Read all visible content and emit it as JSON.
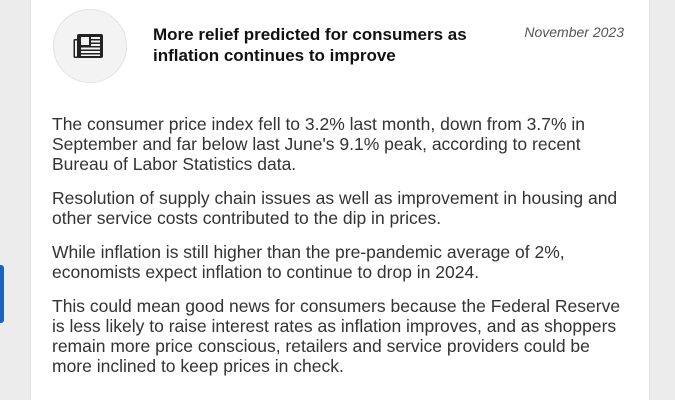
{
  "article": {
    "icon": "newspaper-icon",
    "headline": "More relief predicted for consumers as inflation continues to improve",
    "date": "November 2023",
    "paragraphs": [
      "The consumer price index fell to 3.2% last month, down from 3.7% in September and far below last June's 9.1% peak, according to recent Bureau of Labor Statistics data.",
      "Resolution of supply chain issues as well as improvement in housing and other service costs contributed to the dip in prices.",
      "While inflation is still higher than the pre-pandemic average of 2%, economists expect inflation to continue to drop in 2024.",
      "This could mean good news for consumers because the Federal Reserve is less likely to raise interest rates as inflation improves, and as shoppers remain more price conscious, retailers and service providers could be more inclined to keep prices in check."
    ]
  },
  "colors": {
    "accent": "#1a63b8",
    "background": "#ececec",
    "card": "#ffffff"
  }
}
